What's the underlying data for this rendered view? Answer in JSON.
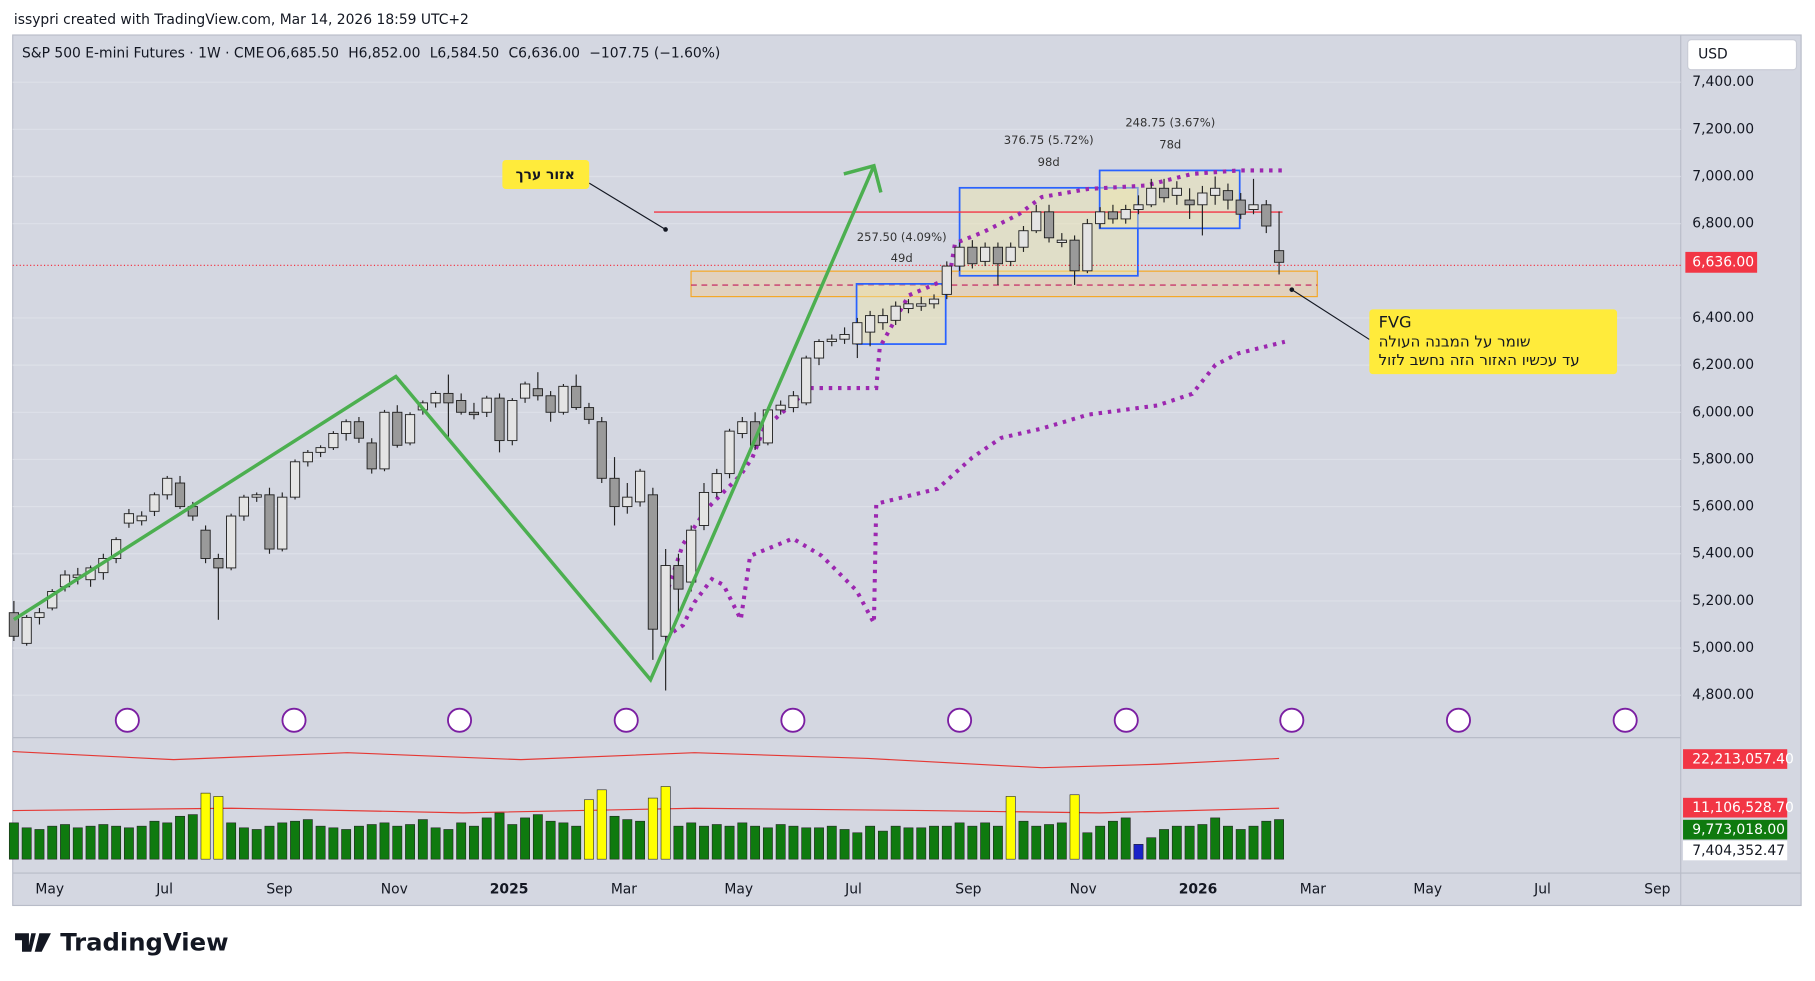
{
  "header": {
    "credit": "issypri created with TradingView.com, Mar 14, 2026 18:59 UTC+2",
    "symbol": "S&P 500 E-mini Futures · 1W · CME",
    "legend_values": [
      "O6,685.50",
      "H6,852.00",
      "L6,584.50",
      "C6,636.00",
      "−107.75 (−1.60%)"
    ]
  },
  "footer": {
    "brand": "TradingView"
  },
  "annotations": {
    "value_zone": "אזור ערך",
    "fvg_title": "FVG",
    "fvg_line1": "שומר על המבנה העולה",
    "fvg_line2": "עד עכשיו האזור הזה נחשב לזול",
    "range1": "257.50 (4.09%)",
    "range1_days": "49d",
    "range2": "376.75 (5.72%)",
    "range2_days": "98d",
    "range3": "248.75 (3.67%)",
    "range3_days": "78d"
  },
  "chart_data": {
    "type": "candlestick",
    "currency": "USD",
    "up_color": "#e4e4e4",
    "down_color": "#9a9a9a",
    "grid": true,
    "ylim": [
      4630,
      7600
    ],
    "yticks": [
      {
        "value": 4800,
        "label": "4,800.00"
      },
      {
        "value": 5000,
        "label": "5,000.00"
      },
      {
        "value": 5200,
        "label": "5,200.00"
      },
      {
        "value": 5400,
        "label": "5,400.00"
      },
      {
        "value": 5600,
        "label": "5,600.00"
      },
      {
        "value": 5800,
        "label": "5,800.00"
      },
      {
        "value": 6000,
        "label": "6,000.00"
      },
      {
        "value": 6200,
        "label": "6,200.00"
      },
      {
        "value": 6400,
        "label": "6,400.00"
      },
      {
        "value": 6800,
        "label": "6,800.00"
      },
      {
        "value": 7000,
        "label": "7,000.00"
      },
      {
        "value": 7200,
        "label": "7,200.00"
      },
      {
        "value": 7400,
        "label": "7,400.00"
      }
    ],
    "last_price": {
      "value": 6636,
      "label": "6,636.00"
    },
    "x_labels": [
      "May",
      "Jul",
      "Sep",
      "Nov",
      "2025",
      "Mar",
      "May",
      "Jul",
      "Sep",
      "Nov",
      "2026",
      "Mar",
      "May",
      "Jul",
      "Sep"
    ],
    "candles": [
      [
        5150,
        5200,
        5030,
        5050
      ],
      [
        5020,
        5140,
        5010,
        5130
      ],
      [
        5130,
        5170,
        5100,
        5150
      ],
      [
        5170,
        5250,
        5160,
        5240
      ],
      [
        5260,
        5330,
        5240,
        5310
      ],
      [
        5300,
        5340,
        5270,
        5310
      ],
      [
        5290,
        5350,
        5260,
        5340
      ],
      [
        5320,
        5400,
        5290,
        5380
      ],
      [
        5380,
        5470,
        5360,
        5460
      ],
      [
        5530,
        5590,
        5510,
        5570
      ],
      [
        5540,
        5580,
        5520,
        5560
      ],
      [
        5580,
        5660,
        5560,
        5650
      ],
      [
        5650,
        5730,
        5630,
        5720
      ],
      [
        5700,
        5730,
        5590,
        5600
      ],
      [
        5600,
        5620,
        5540,
        5560
      ],
      [
        5500,
        5520,
        5360,
        5380
      ],
      [
        5380,
        5400,
        5120,
        5340
      ],
      [
        5340,
        5570,
        5330,
        5560
      ],
      [
        5560,
        5650,
        5540,
        5640
      ],
      [
        5640,
        5660,
        5620,
        5650
      ],
      [
        5650,
        5680,
        5400,
        5420
      ],
      [
        5420,
        5660,
        5410,
        5640
      ],
      [
        5640,
        5800,
        5630,
        5790
      ],
      [
        5790,
        5840,
        5770,
        5830
      ],
      [
        5830,
        5860,
        5810,
        5850
      ],
      [
        5850,
        5920,
        5840,
        5910
      ],
      [
        5910,
        5970,
        5880,
        5960
      ],
      [
        5960,
        5980,
        5870,
        5890
      ],
      [
        5870,
        5890,
        5740,
        5760
      ],
      [
        5760,
        6010,
        5750,
        6000
      ],
      [
        6000,
        6030,
        5850,
        5860
      ],
      [
        5870,
        6000,
        5860,
        5990
      ],
      [
        6010,
        6050,
        5990,
        6040
      ],
      [
        6040,
        6090,
        6020,
        6080
      ],
      [
        6080,
        6160,
        5880,
        6040
      ],
      [
        6050,
        6080,
        5990,
        6000
      ],
      [
        6000,
        6040,
        5970,
        5990
      ],
      [
        6000,
        6070,
        5980,
        6060
      ],
      [
        6060,
        6080,
        5830,
        5880
      ],
      [
        5880,
        6060,
        5860,
        6050
      ],
      [
        6060,
        6130,
        6040,
        6120
      ],
      [
        6100,
        6170,
        6050,
        6070
      ],
      [
        6070,
        6090,
        5960,
        6000
      ],
      [
        6000,
        6120,
        5990,
        6110
      ],
      [
        6110,
        6160,
        6010,
        6020
      ],
      [
        6020,
        6040,
        5950,
        5970
      ],
      [
        5960,
        5980,
        5700,
        5720
      ],
      [
        5720,
        5810,
        5520,
        5600
      ],
      [
        5600,
        5700,
        5570,
        5640
      ],
      [
        5620,
        5760,
        5600,
        5750
      ],
      [
        5650,
        5680,
        4950,
        5080
      ],
      [
        5050,
        5420,
        4820,
        5350
      ],
      [
        5350,
        5400,
        5150,
        5250
      ],
      [
        5280,
        5520,
        5240,
        5500
      ],
      [
        5520,
        5700,
        5500,
        5660
      ],
      [
        5660,
        5760,
        5640,
        5740
      ],
      [
        5740,
        5930,
        5720,
        5920
      ],
      [
        5910,
        5980,
        5890,
        5960
      ],
      [
        5960,
        6000,
        5840,
        5860
      ],
      [
        5870,
        6020,
        5860,
        6010
      ],
      [
        6010,
        6050,
        5990,
        6030
      ],
      [
        6020,
        6090,
        6000,
        6070
      ],
      [
        6040,
        6240,
        6030,
        6230
      ],
      [
        6230,
        6310,
        6200,
        6300
      ],
      [
        6300,
        6330,
        6280,
        6310
      ],
      [
        6310,
        6360,
        6290,
        6330
      ],
      [
        6290,
        6400,
        6230,
        6380
      ],
      [
        6340,
        6430,
        6280,
        6410
      ],
      [
        6380,
        6440,
        6350,
        6410
      ],
      [
        6390,
        6470,
        6370,
        6450
      ],
      [
        6440,
        6480,
        6420,
        6460
      ],
      [
        6450,
        6490,
        6430,
        6460
      ],
      [
        6460,
        6500,
        6440,
        6480
      ],
      [
        6500,
        6640,
        6480,
        6620
      ],
      [
        6620,
        6720,
        6600,
        6700
      ],
      [
        6700,
        6730,
        6610,
        6630
      ],
      [
        6640,
        6720,
        6620,
        6700
      ],
      [
        6700,
        6720,
        6540,
        6630
      ],
      [
        6640,
        6720,
        6620,
        6700
      ],
      [
        6700,
        6790,
        6680,
        6770
      ],
      [
        6770,
        6880,
        6760,
        6850
      ],
      [
        6850,
        6880,
        6720,
        6740
      ],
      [
        6720,
        6760,
        6700,
        6730
      ],
      [
        6730,
        6750,
        6540,
        6600
      ],
      [
        6600,
        6820,
        6590,
        6800
      ],
      [
        6800,
        6870,
        6780,
        6850
      ],
      [
        6850,
        6880,
        6800,
        6820
      ],
      [
        6820,
        6880,
        6800,
        6860
      ],
      [
        6860,
        6920,
        6840,
        6880
      ],
      [
        6880,
        6990,
        6870,
        6950
      ],
      [
        6950,
        6990,
        6890,
        6910
      ],
      [
        6920,
        6980,
        6880,
        6950
      ],
      [
        6900,
        6950,
        6820,
        6880
      ],
      [
        6880,
        6960,
        6750,
        6930
      ],
      [
        6920,
        7000,
        6880,
        6950
      ],
      [
        6940,
        6970,
        6860,
        6900
      ],
      [
        6900,
        6930,
        6820,
        6840
      ],
      [
        6860,
        6990,
        6840,
        6880
      ],
      [
        6880,
        6900,
        6760,
        6790
      ],
      [
        6685.5,
        6852,
        6584.5,
        6636
      ]
    ],
    "volume": {
      "ylim": [
        8000000,
        14800000
      ],
      "values": [
        10200000,
        9900000,
        9800000,
        10000000,
        10100000,
        9900000,
        10000000,
        10100000,
        10000000,
        9900000,
        10000000,
        10300000,
        10200000,
        10600000,
        10700000,
        12000000,
        11800000,
        10200000,
        9900000,
        9800000,
        10000000,
        10200000,
        10300000,
        10400000,
        10000000,
        9900000,
        9800000,
        10000000,
        10100000,
        10200000,
        10000000,
        10100000,
        10400000,
        9900000,
        9800000,
        10200000,
        10000000,
        10500000,
        10800000,
        10100000,
        10500000,
        10700000,
        10300000,
        10200000,
        10000000,
        11600000,
        12200000,
        10600000,
        10400000,
        10300000,
        11700000,
        12400000,
        10000000,
        10200000,
        10000000,
        10100000,
        10000000,
        10200000,
        10000000,
        9900000,
        10100000,
        10000000,
        9900000,
        9900000,
        10000000,
        9800000,
        9600000,
        10000000,
        9700000,
        10000000,
        9900000,
        9900000,
        10000000,
        10000000,
        10200000,
        10000000,
        10200000,
        10000000,
        11800000,
        10300000,
        10000000,
        10100000,
        10200000,
        11900000,
        9600000,
        10000000,
        10300000,
        10500000,
        8900000,
        9300000,
        9800000,
        10000000,
        10000000,
        10100000,
        10500000,
        10000000,
        9800000,
        10000000,
        10300000,
        10400000
      ],
      "colors": [
        "#0f7a0f",
        "#0f7a0f",
        "#0f7a0f",
        "#0f7a0f",
        "#0f7a0f",
        "#0f7a0f",
        "#0f7a0f",
        "#0f7a0f",
        "#0f7a0f",
        "#0f7a0f",
        "#0f7a0f",
        "#0f7a0f",
        "#0f7a0f",
        "#0f7a0f",
        "#0f7a0f",
        "#ffff00",
        "#ffff00",
        "#0f7a0f",
        "#0f7a0f",
        "#0f7a0f",
        "#0f7a0f",
        "#0f7a0f",
        "#0f7a0f",
        "#0f7a0f",
        "#0f7a0f",
        "#0f7a0f",
        "#0f7a0f",
        "#0f7a0f",
        "#0f7a0f",
        "#0f7a0f",
        "#0f7a0f",
        "#0f7a0f",
        "#0f7a0f",
        "#0f7a0f",
        "#0f7a0f",
        "#0f7a0f",
        "#0f7a0f",
        "#0f7a0f",
        "#0f7a0f",
        "#0f7a0f",
        "#0f7a0f",
        "#0f7a0f",
        "#0f7a0f",
        "#0f7a0f",
        "#0f7a0f",
        "#ffff00",
        "#ffff00",
        "#0f7a0f",
        "#0f7a0f",
        "#0f7a0f",
        "#ffff00",
        "#ffff00",
        "#0f7a0f",
        "#0f7a0f",
        "#0f7a0f",
        "#0f7a0f",
        "#0f7a0f",
        "#0f7a0f",
        "#0f7a0f",
        "#0f7a0f",
        "#0f7a0f",
        "#0f7a0f",
        "#0f7a0f",
        "#0f7a0f",
        "#0f7a0f",
        "#0f7a0f",
        "#0f7a0f",
        "#0f7a0f",
        "#0f7a0f",
        "#0f7a0f",
        "#0f7a0f",
        "#0f7a0f",
        "#0f7a0f",
        "#0f7a0f",
        "#0f7a0f",
        "#0f7a0f",
        "#0f7a0f",
        "#0f7a0f",
        "#ffff00",
        "#0f7a0f",
        "#0f7a0f",
        "#0f7a0f",
        "#0f7a0f",
        "#ffff00",
        "#0f7a0f",
        "#0f7a0f",
        "#0f7a0f",
        "#0f7a0f",
        "#1a22c8",
        "#0f7a0f",
        "#0f7a0f",
        "#0f7a0f",
        "#0f7a0f",
        "#0f7a0f",
        "#0f7a0f",
        "#0f7a0f",
        "#0f7a0f",
        "#0f7a0f",
        "#0f7a0f",
        "#0f7a0f"
      ],
      "labels": [
        {
          "text": "22,213,057.40",
          "color": "#f23645"
        },
        {
          "text": "11,106,528.70",
          "color": "#f23645"
        },
        {
          "text": "9,773,018.00",
          "color": "#0f7a0f"
        },
        {
          "text": "7,404,352.47",
          "color": "#ffffff"
        }
      ]
    }
  }
}
